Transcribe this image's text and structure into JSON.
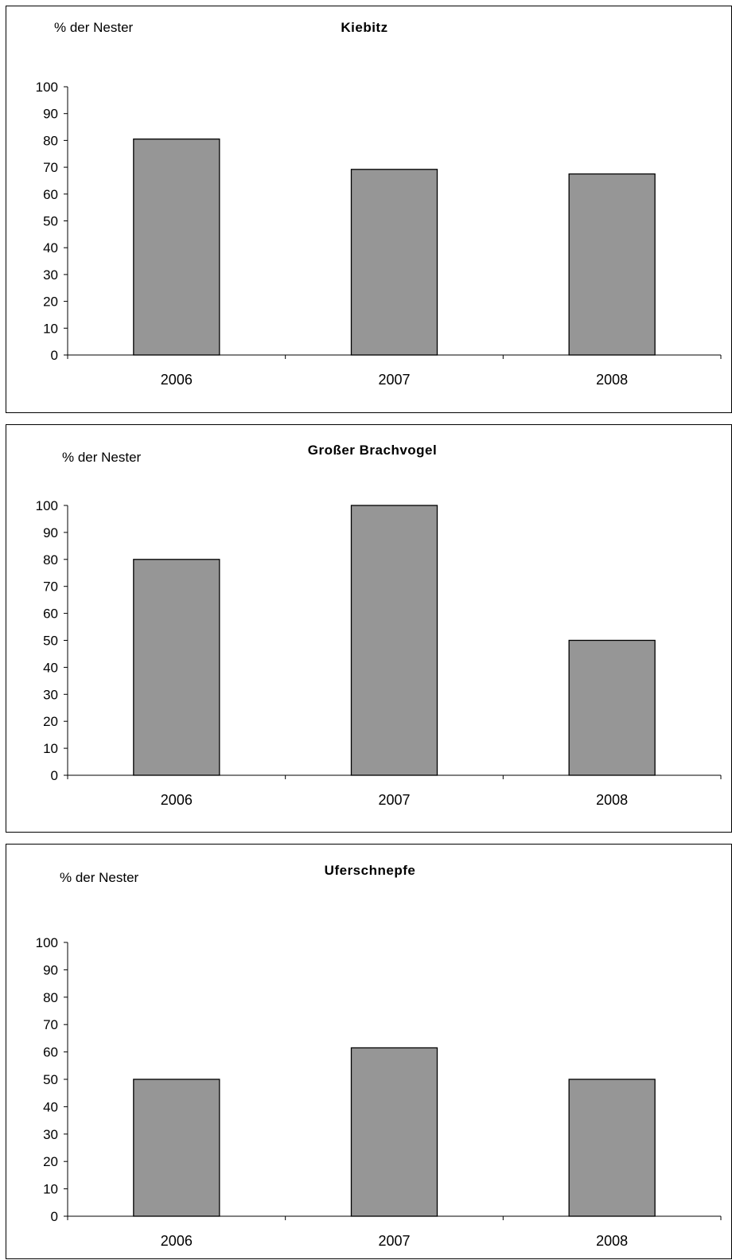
{
  "chart_data": [
    {
      "type": "bar",
      "title": "Kiebitz",
      "ylabel": "% der Nester",
      "xlabel": "",
      "categories": [
        "2006",
        "2007",
        "2008"
      ],
      "values": [
        80.5,
        69.2,
        67.5
      ],
      "ylim": [
        0,
        100
      ],
      "yticks": [
        0,
        10,
        20,
        30,
        40,
        50,
        60,
        70,
        80,
        90,
        100
      ],
      "bar_color": "#969696",
      "grid": false
    },
    {
      "type": "bar",
      "title": "Großer Brachvogel",
      "ylabel": "% der Nester",
      "xlabel": "",
      "categories": [
        "2006",
        "2007",
        "2008"
      ],
      "values": [
        80,
        100,
        50
      ],
      "ylim": [
        0,
        100
      ],
      "yticks": [
        0,
        10,
        20,
        30,
        40,
        50,
        60,
        70,
        80,
        90,
        100
      ],
      "bar_color": "#969696",
      "grid": false
    },
    {
      "type": "bar",
      "title": "Uferschnepfe",
      "ylabel": "% der Nester",
      "xlabel": "",
      "categories": [
        "2006",
        "2007",
        "2008"
      ],
      "values": [
        50,
        61.5,
        50
      ],
      "ylim": [
        0,
        100
      ],
      "yticks": [
        0,
        10,
        20,
        30,
        40,
        50,
        60,
        70,
        80,
        90,
        100
      ],
      "bar_color": "#969696",
      "grid": false
    }
  ]
}
